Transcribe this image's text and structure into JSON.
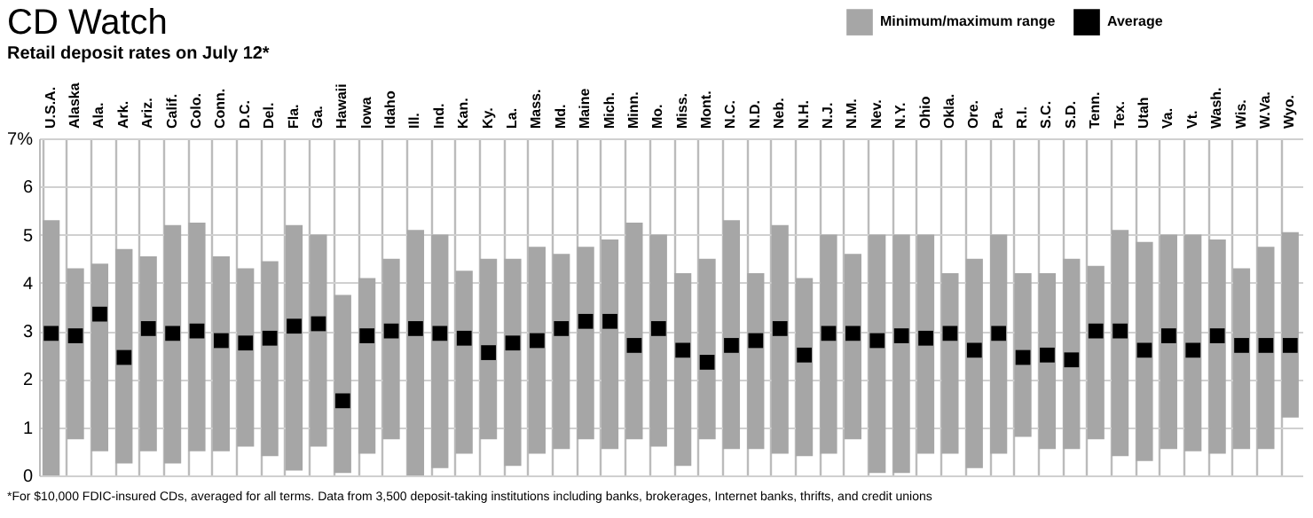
{
  "chart_data": {
    "type": "bar",
    "title": "CD Watch",
    "subtitle": "Retail deposit rates on July 12*",
    "categories": [
      "U.S.A.",
      "Alaska",
      "Ala.",
      "Ark.",
      "Ariz.",
      "Calif.",
      "Colo.",
      "Conn.",
      "D.C.",
      "Del.",
      "Fla.",
      "Ga.",
      "Hawaii",
      "Iowa",
      "Idaho",
      "Ill.",
      "Ind.",
      "Kan.",
      "Ky.",
      "La.",
      "Mass.",
      "Md.",
      "Maine",
      "Mich.",
      "Minn.",
      "Mo.",
      "Miss.",
      "Mont.",
      "N.C.",
      "N.D.",
      "Neb.",
      "N.H.",
      "N.J.",
      "N.M.",
      "Nev.",
      "N.Y.",
      "Ohio",
      "Okla.",
      "Ore.",
      "Pa.",
      "R.I.",
      "S.C.",
      "S.D.",
      "Tenn.",
      "Tex.",
      "Utah",
      "Va.",
      "Vt.",
      "Wash.",
      "Wis.",
      "W.Va.",
      "Wyo."
    ],
    "series": [
      {
        "name": "Minimum/maximum range",
        "color": "#a6a6a6",
        "base": [
          0,
          0.75,
          0.5,
          0.25,
          0.5,
          0.25,
          0.5,
          0.5,
          0.6,
          0.4,
          0.1,
          0.6,
          0.05,
          0.45,
          0.75,
          0,
          0.15,
          0.45,
          0.75,
          0.2,
          0.45,
          0.55,
          0.75,
          0.55,
          0.75,
          0.6,
          0.2,
          0.75,
          0.55,
          0.55,
          0.45,
          0.4,
          0.45,
          0.75,
          0.05,
          0.05,
          0.45,
          0.45,
          0.15,
          0.45,
          0.8,
          0.55,
          0.55,
          0.75,
          0.4,
          0.3,
          0.55,
          0.5,
          0.45,
          0.55,
          0.55,
          1.2
        ],
        "values": [
          5.3,
          3.55,
          3.9,
          4.45,
          4.05,
          4.95,
          4.75,
          4.05,
          3.7,
          4.05,
          5.1,
          4.4,
          3.7,
          3.65,
          3.75,
          5.1,
          4.85,
          3.8,
          3.75,
          4.3,
          4.3,
          4.05,
          4.0,
          4.35,
          4.5,
          4.4,
          4.0,
          3.75,
          4.75,
          3.65,
          4.75,
          3.7,
          4.55,
          3.85,
          4.95,
          4.95,
          4.55,
          3.75,
          4.35,
          4.55,
          3.4,
          3.65,
          3.95,
          3.6,
          4.7,
          4.55,
          4.45,
          4.5,
          4.45,
          3.75,
          4.2,
          3.85
        ]
      },
      {
        "name": "Average",
        "type": "scatter",
        "color": "#000000",
        "marker": "square",
        "values": [
          2.95,
          2.9,
          3.35,
          2.45,
          3.05,
          2.95,
          3.0,
          2.8,
          2.75,
          2.85,
          3.1,
          3.15,
          1.55,
          2.9,
          3.0,
          3.05,
          2.95,
          2.85,
          2.55,
          2.75,
          2.8,
          3.05,
          3.2,
          3.2,
          2.7,
          3.05,
          2.6,
          2.35,
          2.7,
          2.8,
          3.05,
          2.5,
          2.95,
          2.95,
          2.8,
          2.9,
          2.85,
          2.95,
          2.6,
          2.95,
          2.45,
          2.5,
          2.4,
          3.0,
          3.0,
          2.6,
          2.9,
          2.6,
          2.9,
          2.7,
          2.7,
          2.7
        ]
      }
    ],
    "ylim": [
      0,
      7
    ],
    "yticks": [
      0,
      1,
      2,
      3,
      4,
      5,
      6,
      {
        "value": 7,
        "label": "7%"
      }
    ],
    "grid": true,
    "legend": "top right",
    "annotations": [
      "*For $10,000 FDIC-insured CDs, averaged for all terms. Data from 3,500 deposit-taking institutions including banks, brokerages, Internet banks, thrifts, and credit unions"
    ]
  }
}
